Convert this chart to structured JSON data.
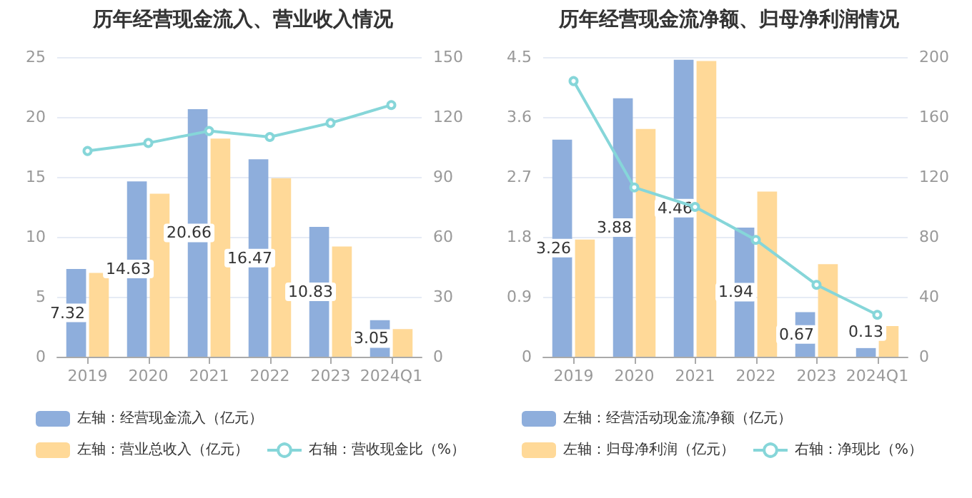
{
  "chart_data": [
    {
      "type": "bar",
      "title": "历年经营现金流入、营业收入情况",
      "categories": [
        "2019",
        "2020",
        "2021",
        "2022",
        "2023",
        "2024Q1"
      ],
      "ylim": [
        0,
        25
      ],
      "yticks": [
        0,
        5,
        10,
        15,
        20,
        25
      ],
      "y2lim": [
        0,
        150
      ],
      "y2ticks": [
        0,
        30,
        60,
        90,
        120,
        150
      ],
      "grid": "y",
      "legend": "bottom",
      "series": [
        {
          "name": "左轴：经营现金流入（亿元）",
          "color": "#8eaedc",
          "values": [
            7.32,
            14.63,
            20.66,
            16.47,
            10.83,
            3.05
          ],
          "value_labels": [
            "7.32",
            "14.63",
            "20.66",
            "16.47",
            "10.83",
            "3.05"
          ]
        },
        {
          "name": "左轴：营业总收入（亿元）",
          "color": "#ffd998",
          "values": [
            7.0,
            13.6,
            18.2,
            14.9,
            9.2,
            2.3
          ]
        },
        {
          "name": "右轴：营收现金比（%）",
          "type": "line",
          "axis": "y2",
          "color": "#86d6d9",
          "marker": "circle",
          "values": [
            103,
            107,
            113,
            110,
            117,
            126
          ]
        }
      ]
    },
    {
      "type": "bar",
      "title": "历年经营现金流净额、归母净利润情况",
      "categories": [
        "2019",
        "2020",
        "2021",
        "2022",
        "2023",
        "2024Q1"
      ],
      "ylim": [
        0,
        4.5
      ],
      "yticks": [
        0,
        0.9,
        1.8,
        2.7,
        3.6,
        4.5
      ],
      "y2lim": [
        0,
        200
      ],
      "y2ticks": [
        0,
        40,
        80,
        120,
        160,
        200
      ],
      "grid": "y",
      "legend": "bottom",
      "series": [
        {
          "name": "左轴：经营活动现金流净额（亿元）",
          "color": "#8eaedc",
          "values": [
            3.26,
            3.88,
            4.46,
            1.94,
            0.67,
            0.13
          ],
          "value_labels": [
            "3.26",
            "3.88",
            "4.46",
            "1.94",
            "0.67",
            "0.13"
          ]
        },
        {
          "name": "左轴：归母净利润（亿元）",
          "color": "#ffd998",
          "values": [
            1.76,
            3.42,
            4.44,
            2.48,
            1.39,
            0.46
          ]
        },
        {
          "name": "右轴：净现比（%）",
          "type": "line",
          "axis": "y2",
          "color": "#86d6d9",
          "marker": "circle",
          "values": [
            184,
            113,
            100,
            78,
            48,
            28
          ]
        }
      ]
    }
  ]
}
